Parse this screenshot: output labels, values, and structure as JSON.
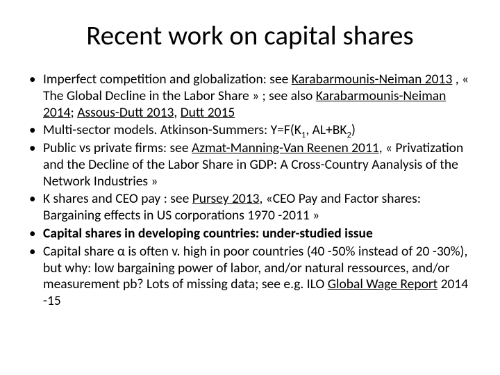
{
  "title": "Recent work on capital shares",
  "bullets": {
    "b1": {
      "t1": "Imperfect competition and globalization: see ",
      "link1": "Karabarmounis-Neiman 2013",
      "t2": " , « The Global Decline in the Labor Share » ; see also ",
      "link2": "Karabarmounis-Neiman 2014",
      "sep1": "; ",
      "link3": "Assous-Dutt 2013",
      "sep2": ", ",
      "link4": "Dutt 2015"
    },
    "b2": {
      "t1": "Multi-sector models. Atkinson-Summers: Y=F(K",
      "s1": "1",
      "t2": ", AL+BK",
      "s2": "2",
      "t3": ")"
    },
    "b3": {
      "t1": "Public vs private firms: see ",
      "link1": "Azmat-Manning-Van Reenen 2011",
      "t2": ", « Privatization and the Decline of the Labor Share in GDP: A Cross-Country Aanalysis of the Network Industries »"
    },
    "b4": {
      "t1": "K shares and CEO pay : see ",
      "link1": "Pursey 2013",
      "t2": ", «CEO Pay and Factor shares: Bargaining effects in US corporations 1970 -2011 »"
    },
    "b5": {
      "t1": "Capital shares in developing countries: under-studied issue"
    },
    "b6": {
      "t1": "Capital share α is often v. high in poor countries (40 -50% instead of 20 -30%), but why: low bargaining power of labor, and/or natural ressources, and/or measurement pb? Lots of missing data; see e.g. ILO ",
      "link1": "Global Wage Report",
      "t2": " 2014 -15"
    }
  }
}
